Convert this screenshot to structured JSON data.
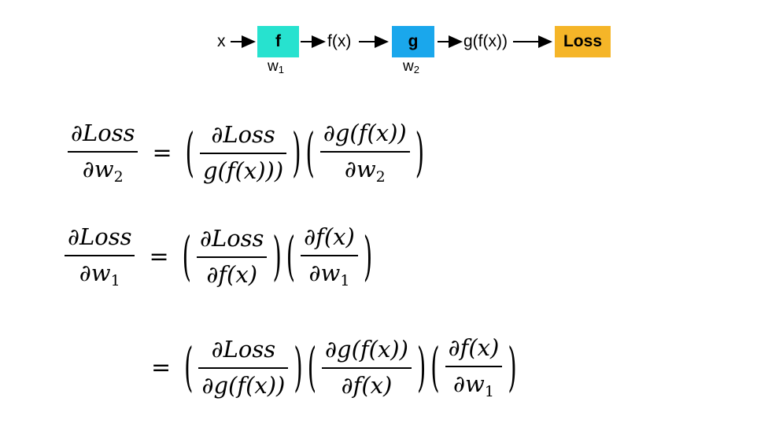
{
  "flow": {
    "x_label": "x",
    "f_label": "f",
    "fx_label": "f(x)",
    "g_label": "g",
    "gfx_label": "g(f(x))",
    "loss_label": "Loss",
    "w1_label": "w",
    "w1_sub": "1",
    "w2_label": "w",
    "w2_sub": "2",
    "colors": {
      "f_box": "#27e2cf",
      "g_box": "#1aa7ec",
      "loss_box": "#f5b528"
    }
  },
  "equations": {
    "eq1": {
      "lhs_num": "∂Loss",
      "lhs_den_main": "∂w",
      "lhs_den_sub": "2",
      "t1_num": "∂Loss",
      "t1_den": "g(f(x)))",
      "t2_num": "∂g(f(x))",
      "t2_den_main": "∂w",
      "t2_den_sub": "2"
    },
    "eq2": {
      "lhs_num": "∂Loss",
      "lhs_den_main": "∂w",
      "lhs_den_sub": "1",
      "t1_num": "∂Loss",
      "t1_den": "∂f(x)",
      "t2_num": "∂f(x)",
      "t2_den_main": "∂w",
      "t2_den_sub": "1"
    },
    "eq3": {
      "t1_num": "∂Loss",
      "t1_den": "∂g(f(x))",
      "t2_num": "∂g(f(x))",
      "t2_den": "∂f(x)",
      "t3_num": "∂f(x)",
      "t3_den_main": "∂w",
      "t3_den_sub": "1"
    },
    "equals": "=",
    "lparen": "(",
    "rparen": ")"
  }
}
